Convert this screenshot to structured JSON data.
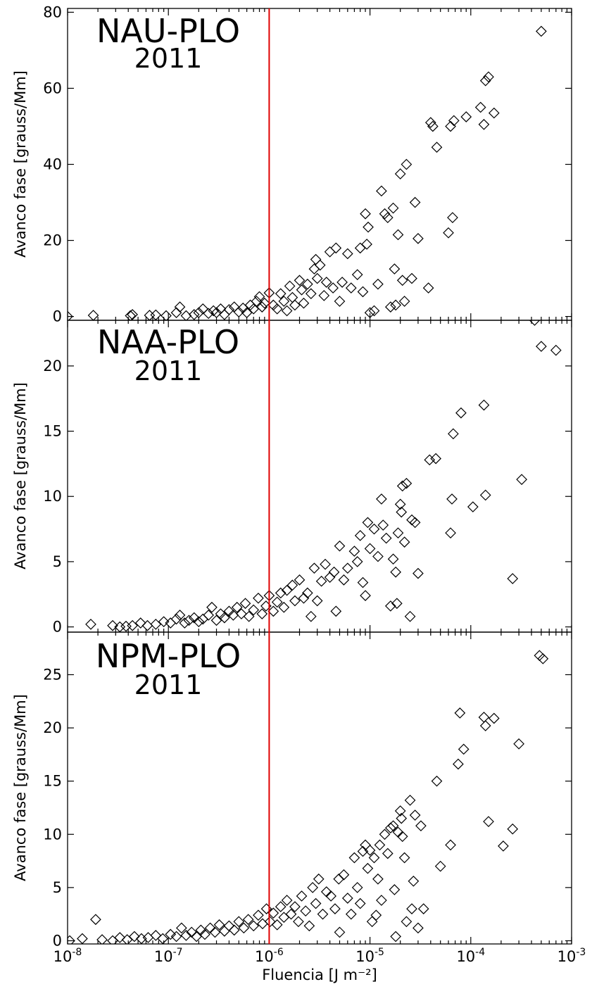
{
  "chart_data": {
    "type": "scatter",
    "xlabel": "Fluencia [J m⁻²]",
    "xscale": "log",
    "xlim": [
      1e-08,
      0.001
    ],
    "x_ticks": [
      1e-08,
      1e-07,
      1e-06,
      1e-05,
      0.0001,
      0.001
    ],
    "x_tick_labels": [
      {
        "base": "10",
        "exp": "-8"
      },
      {
        "base": "10",
        "exp": "-7"
      },
      {
        "base": "10",
        "exp": "-6"
      },
      {
        "base": "10",
        "exp": "-5"
      },
      {
        "base": "10",
        "exp": "-4"
      },
      {
        "base": "10",
        "exp": "-3"
      }
    ],
    "reference_line_x": 1e-06,
    "reference_line_color": "#e00000",
    "marker": "diamond-open",
    "grid": false,
    "panels": [
      {
        "title": "NAU-PLO",
        "subtitle": "2011",
        "ylabel": "Avanco fase [grauss/Mm]",
        "ylim": [
          -1,
          81
        ],
        "yticks": [
          0,
          20,
          40,
          60,
          80
        ],
        "points": [
          [
            1e-08,
            0
          ],
          [
            1.8e-08,
            0.3
          ],
          [
            4.2e-08,
            0.2
          ],
          [
            4.4e-08,
            0.5
          ],
          [
            6.5e-08,
            0.3
          ],
          [
            7.5e-08,
            0.4
          ],
          [
            9.5e-08,
            0.2
          ],
          [
            1.2e-07,
            1.0
          ],
          [
            1.3e-07,
            2.5
          ],
          [
            1.5e-07,
            0.2
          ],
          [
            1.8e-07,
            0.5
          ],
          [
            2e-07,
            1.0
          ],
          [
            2.2e-07,
            2.0
          ],
          [
            2.5e-07,
            0.8
          ],
          [
            2.8e-07,
            1.5
          ],
          [
            3e-07,
            1.0
          ],
          [
            3.3e-07,
            2.0
          ],
          [
            3.6e-07,
            0.5
          ],
          [
            4e-07,
            1.8
          ],
          [
            4.5e-07,
            2.5
          ],
          [
            5e-07,
            1.2
          ],
          [
            5.5e-07,
            2.2
          ],
          [
            6e-07,
            1.0
          ],
          [
            6.5e-07,
            3.0
          ],
          [
            7e-07,
            2.0
          ],
          [
            7.5e-07,
            4.0
          ],
          [
            8e-07,
            5.2
          ],
          [
            8.5e-07,
            2.5
          ],
          [
            9e-07,
            3.5
          ],
          [
            1e-06,
            6.2
          ],
          [
            1.1e-06,
            3.0
          ],
          [
            1.2e-06,
            2.0
          ],
          [
            1.3e-06,
            6.0
          ],
          [
            1.4e-06,
            4.0
          ],
          [
            1.5e-06,
            1.5
          ],
          [
            1.6e-06,
            8.0
          ],
          [
            1.7e-06,
            5.0
          ],
          [
            1.8e-06,
            3.0
          ],
          [
            2e-06,
            9.5
          ],
          [
            2.1e-06,
            7.0
          ],
          [
            2.2e-06,
            3.5
          ],
          [
            2.4e-06,
            8.5
          ],
          [
            2.6e-06,
            6.0
          ],
          [
            2.8e-06,
            12.5
          ],
          [
            2.9e-06,
            15.0
          ],
          [
            3e-06,
            10.0
          ],
          [
            3.2e-06,
            13.5
          ],
          [
            3.5e-06,
            5.5
          ],
          [
            3.7e-06,
            9.0
          ],
          [
            4e-06,
            17.0
          ],
          [
            4.3e-06,
            7.5
          ],
          [
            4.6e-06,
            18.0
          ],
          [
            5e-06,
            4.0
          ],
          [
            5.3e-06,
            9.0
          ],
          [
            6e-06,
            16.5
          ],
          [
            6.5e-06,
            7.5
          ],
          [
            7.5e-06,
            11.0
          ],
          [
            8e-06,
            18.0
          ],
          [
            8.5e-06,
            6.5
          ],
          [
            9e-06,
            27.0
          ],
          [
            9.3e-06,
            19.0
          ],
          [
            9.6e-06,
            23.5
          ],
          [
            1e-05,
            1.0
          ],
          [
            1.1e-05,
            1.5
          ],
          [
            1.2e-05,
            8.5
          ],
          [
            1.3e-05,
            33.0
          ],
          [
            1.4e-05,
            27.0
          ],
          [
            1.5e-05,
            26.0
          ],
          [
            1.6e-05,
            2.5
          ],
          [
            1.7e-05,
            28.5
          ],
          [
            1.75e-05,
            12.5
          ],
          [
            1.8e-05,
            3.0
          ],
          [
            1.9e-05,
            21.5
          ],
          [
            2e-05,
            37.5
          ],
          [
            2.1e-05,
            9.5
          ],
          [
            2.2e-05,
            4.0
          ],
          [
            2.3e-05,
            40.0
          ],
          [
            2.6e-05,
            10.0
          ],
          [
            2.8e-05,
            30.0
          ],
          [
            3e-05,
            20.5
          ],
          [
            3.8e-05,
            7.5
          ],
          [
            4e-05,
            51.0
          ],
          [
            4.2e-05,
            50.0
          ],
          [
            4.6e-05,
            44.5
          ],
          [
            6e-05,
            22.0
          ],
          [
            6.3e-05,
            50.0
          ],
          [
            6.6e-05,
            26.0
          ],
          [
            6.8e-05,
            51.5
          ],
          [
            9e-05,
            52.5
          ],
          [
            0.000125,
            55.0
          ],
          [
            0.000135,
            50.5
          ],
          [
            0.00014,
            62.0
          ],
          [
            0.00015,
            63.0
          ],
          [
            0.00017,
            53.5
          ],
          [
            0.0005,
            75.0
          ]
        ]
      },
      {
        "title": "NAA-PLO",
        "subtitle": "2011",
        "ylabel": "Avanco fase [grauss/Mm]",
        "ylim": [
          -0.4,
          23.5
        ],
        "yticks": [
          0,
          5,
          10,
          15,
          20
        ],
        "points": [
          [
            1.7e-08,
            0.2
          ],
          [
            2.8e-08,
            0.1
          ],
          [
            3.3e-08,
            0.0
          ],
          [
            3.8e-08,
            0.05
          ],
          [
            4.4e-08,
            0.1
          ],
          [
            5.3e-08,
            0.3
          ],
          [
            6.2e-08,
            0.1
          ],
          [
            7.5e-08,
            0.2
          ],
          [
            9e-08,
            0.4
          ],
          [
            1.05e-07,
            0.3
          ],
          [
            1.2e-07,
            0.6
          ],
          [
            1.3e-07,
            0.9
          ],
          [
            1.45e-07,
            0.3
          ],
          [
            1.6e-07,
            0.5
          ],
          [
            1.8e-07,
            0.7
          ],
          [
            2e-07,
            0.4
          ],
          [
            2.2e-07,
            0.6
          ],
          [
            2.5e-07,
            0.9
          ],
          [
            2.7e-07,
            1.5
          ],
          [
            3e-07,
            0.5
          ],
          [
            3.3e-07,
            1.0
          ],
          [
            3.6e-07,
            0.7
          ],
          [
            4e-07,
            1.2
          ],
          [
            4.4e-07,
            0.9
          ],
          [
            4.8e-07,
            1.5
          ],
          [
            5.3e-07,
            1.0
          ],
          [
            5.8e-07,
            1.8
          ],
          [
            6.3e-07,
            0.8
          ],
          [
            7e-07,
            1.3
          ],
          [
            7.8e-07,
            2.2
          ],
          [
            8.5e-07,
            1.0
          ],
          [
            9.3e-07,
            1.6
          ],
          [
            1e-06,
            2.4
          ],
          [
            1.1e-06,
            1.2
          ],
          [
            1.2e-06,
            1.9
          ],
          [
            1.3e-06,
            2.6
          ],
          [
            1.4e-06,
            1.5
          ],
          [
            1.5e-06,
            2.8
          ],
          [
            1.7e-06,
            3.2
          ],
          [
            1.8e-06,
            2.0
          ],
          [
            2e-06,
            3.6
          ],
          [
            2.2e-06,
            2.2
          ],
          [
            2.4e-06,
            2.6
          ],
          [
            2.6e-06,
            0.8
          ],
          [
            2.8e-06,
            4.5
          ],
          [
            3e-06,
            2.0
          ],
          [
            3.3e-06,
            3.5
          ],
          [
            3.6e-06,
            4.8
          ],
          [
            4e-06,
            3.8
          ],
          [
            4.4e-06,
            4.2
          ],
          [
            4.6e-06,
            1.2
          ],
          [
            5e-06,
            6.2
          ],
          [
            5.5e-06,
            3.6
          ],
          [
            6e-06,
            4.5
          ],
          [
            7e-06,
            5.8
          ],
          [
            7.5e-06,
            5.0
          ],
          [
            8e-06,
            7.0
          ],
          [
            8.5e-06,
            3.4
          ],
          [
            9e-06,
            2.4
          ],
          [
            9.5e-06,
            8.0
          ],
          [
            1e-05,
            6.0
          ],
          [
            1.1e-05,
            7.5
          ],
          [
            1.2e-05,
            5.4
          ],
          [
            1.3e-05,
            9.8
          ],
          [
            1.35e-05,
            7.8
          ],
          [
            1.45e-05,
            6.8
          ],
          [
            1.6e-05,
            1.6
          ],
          [
            1.7e-05,
            5.2
          ],
          [
            1.8e-05,
            4.2
          ],
          [
            1.85e-05,
            1.8
          ],
          [
            1.9e-05,
            7.2
          ],
          [
            2e-05,
            9.4
          ],
          [
            2.05e-05,
            8.8
          ],
          [
            2.1e-05,
            10.8
          ],
          [
            2.2e-05,
            6.5
          ],
          [
            2.3e-05,
            11.0
          ],
          [
            2.5e-05,
            0.8
          ],
          [
            2.6e-05,
            8.2
          ],
          [
            2.8e-05,
            8.0
          ],
          [
            3e-05,
            4.1
          ],
          [
            3.9e-05,
            12.8
          ],
          [
            4.5e-05,
            12.9
          ],
          [
            6.3e-05,
            7.2
          ],
          [
            6.5e-05,
            9.8
          ],
          [
            6.7e-05,
            14.8
          ],
          [
            8e-05,
            16.4
          ],
          [
            0.000105,
            9.2
          ],
          [
            0.000135,
            17.0
          ],
          [
            0.00014,
            10.1
          ],
          [
            0.00026,
            3.7
          ],
          [
            0.00032,
            11.3
          ],
          [
            0.00043,
            23.5
          ],
          [
            0.0005,
            21.5
          ],
          [
            0.0007,
            21.2
          ]
        ]
      },
      {
        "title": "NPM-PLO",
        "subtitle": "2011",
        "ylabel": "Avanco fase [grauss/Mm]",
        "ylim": [
          -0.3,
          29
        ],
        "yticks": [
          0,
          5,
          10,
          15,
          20,
          25
        ],
        "points": [
          [
            1.05e-08,
            0.0
          ],
          [
            1.4e-08,
            0.2
          ],
          [
            1.9e-08,
            2.0
          ],
          [
            2.2e-08,
            0.1
          ],
          [
            2.8e-08,
            0.0
          ],
          [
            3.3e-08,
            0.3
          ],
          [
            3.9e-08,
            0.1
          ],
          [
            4.6e-08,
            0.4
          ],
          [
            5.4e-08,
            0.2
          ],
          [
            6.3e-08,
            0.3
          ],
          [
            7.5e-08,
            0.5
          ],
          [
            8.8e-08,
            0.2
          ],
          [
            1.05e-07,
            0.6
          ],
          [
            1.2e-07,
            0.4
          ],
          [
            1.35e-07,
            1.2
          ],
          [
            1.5e-07,
            0.5
          ],
          [
            1.7e-07,
            0.8
          ],
          [
            1.9e-07,
            0.4
          ],
          [
            2.1e-07,
            1.0
          ],
          [
            2.3e-07,
            0.6
          ],
          [
            2.6e-07,
            1.2
          ],
          [
            2.9e-07,
            0.8
          ],
          [
            3.2e-07,
            1.5
          ],
          [
            3.6e-07,
            0.9
          ],
          [
            4e-07,
            1.4
          ],
          [
            4.5e-07,
            1.0
          ],
          [
            5e-07,
            1.8
          ],
          [
            5.6e-07,
            1.2
          ],
          [
            6.2e-07,
            2.0
          ],
          [
            7e-07,
            1.4
          ],
          [
            7.8e-07,
            2.4
          ],
          [
            8.6e-07,
            1.6
          ],
          [
            9.4e-07,
            3.0
          ],
          [
            1.02e-06,
            1.8
          ],
          [
            1.1e-06,
            2.6
          ],
          [
            1.2e-06,
            1.5
          ],
          [
            1.3e-06,
            3.2
          ],
          [
            1.4e-06,
            2.2
          ],
          [
            1.5e-06,
            3.8
          ],
          [
            1.65e-06,
            2.5
          ],
          [
            1.8e-06,
            3.2
          ],
          [
            1.95e-06,
            1.8
          ],
          [
            2.1e-06,
            4.2
          ],
          [
            2.3e-06,
            2.8
          ],
          [
            2.5e-06,
            1.4
          ],
          [
            2.7e-06,
            5.0
          ],
          [
            2.9e-06,
            3.5
          ],
          [
            3.1e-06,
            5.8
          ],
          [
            3.4e-06,
            2.5
          ],
          [
            3.7e-06,
            4.6
          ],
          [
            4.1e-06,
            4.2
          ],
          [
            4.5e-06,
            3.0
          ],
          [
            4.9e-06,
            5.8
          ],
          [
            5e-06,
            0.8
          ],
          [
            5.5e-06,
            6.2
          ],
          [
            6e-06,
            4.0
          ],
          [
            6.5e-06,
            2.5
          ],
          [
            7e-06,
            7.8
          ],
          [
            7.5e-06,
            5.0
          ],
          [
            8e-06,
            3.5
          ],
          [
            8.5e-06,
            8.4
          ],
          [
            9e-06,
            9.0
          ],
          [
            9.5e-06,
            6.8
          ],
          [
            1e-05,
            8.5
          ],
          [
            1.05e-05,
            1.8
          ],
          [
            1.1e-05,
            7.8
          ],
          [
            1.15e-05,
            2.4
          ],
          [
            1.2e-05,
            5.8
          ],
          [
            1.25e-05,
            9.0
          ],
          [
            1.3e-05,
            3.8
          ],
          [
            1.4e-05,
            10.0
          ],
          [
            1.5e-05,
            8.2
          ],
          [
            1.6e-05,
            10.6
          ],
          [
            1.7e-05,
            10.8
          ],
          [
            1.75e-05,
            4.8
          ],
          [
            1.8e-05,
            0.4
          ],
          [
            1.9e-05,
            10.2
          ],
          [
            2e-05,
            12.2
          ],
          [
            2.05e-05,
            11.5
          ],
          [
            2.1e-05,
            9.8
          ],
          [
            2.2e-05,
            7.8
          ],
          [
            2.3e-05,
            1.8
          ],
          [
            2.5e-05,
            13.2
          ],
          [
            2.6e-05,
            3.0
          ],
          [
            2.7e-05,
            5.6
          ],
          [
            2.8e-05,
            11.8
          ],
          [
            3e-05,
            1.2
          ],
          [
            3.2e-05,
            10.8
          ],
          [
            3.4e-05,
            3.0
          ],
          [
            4.6e-05,
            15.0
          ],
          [
            5e-05,
            7.0
          ],
          [
            6.3e-05,
            9.0
          ],
          [
            7.5e-05,
            16.6
          ],
          [
            7.8e-05,
            21.4
          ],
          [
            8.5e-05,
            18.0
          ],
          [
            0.000135,
            21.0
          ],
          [
            0.00014,
            20.2
          ],
          [
            0.00015,
            11.2
          ],
          [
            0.00017,
            20.9
          ],
          [
            0.00021,
            8.9
          ],
          [
            0.00026,
            10.5
          ],
          [
            0.0003,
            18.5
          ],
          [
            0.00048,
            26.8
          ],
          [
            0.00052,
            26.5
          ]
        ]
      }
    ]
  }
}
